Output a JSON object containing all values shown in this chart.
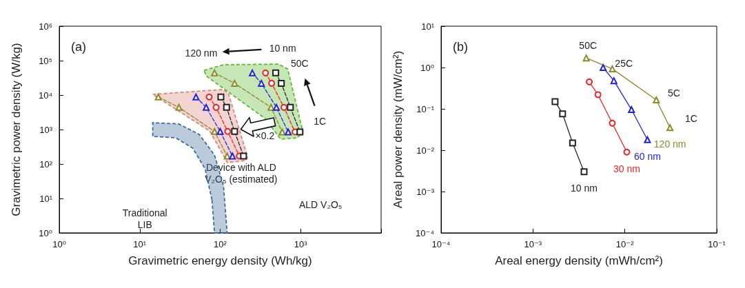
{
  "chart_data": [
    {
      "type": "line",
      "xlabel": "Gravimetric energy density (Wh/kg)",
      "ylabel": "Gravimetric power density (W/kg)",
      "log": "xy",
      "xlim": [
        1,
        10000
      ],
      "ylim": [
        1,
        1000000
      ],
      "xticks": [
        {
          "value": 1,
          "label": "10⁰"
        },
        {
          "value": 10,
          "label": "10¹"
        },
        {
          "value": 100,
          "label": "10²"
        },
        {
          "value": 1000,
          "label": "10³"
        },
        {
          "value": 10000,
          "label": null
        }
      ],
      "yticks": [
        {
          "value": 1,
          "label": "10⁰"
        },
        {
          "value": 10,
          "label": "10¹"
        },
        {
          "value": 100,
          "label": "10²"
        },
        {
          "value": 1000,
          "label": "10³"
        },
        {
          "value": 10000,
          "label": "10⁴"
        },
        {
          "value": 100000,
          "label": "10⁵"
        },
        {
          "value": 1000000,
          "label": "10⁶"
        }
      ],
      "grid": false,
      "legend": false,
      "line_style": "dashed",
      "annotations": [
        "(a)",
        "120 nm",
        "10 nm",
        "50C",
        {
          "text": "1C",
          "x": 980,
          "y": 850
        },
        {
          "text": "×0.2",
          "x": 151,
          "y": 880
        },
        "ALD V₂O₅",
        "Device with ALD V₂O₅ (estimated)",
        "Traditional LIB"
      ],
      "series": [
        {
          "type": "area",
          "color": "#5cb82e",
          "x": [
            63,
            110,
            534,
            690,
            1070,
            910,
            565,
            360,
            67
          ],
          "values": [
            52000,
            76000,
            79000,
            57000,
            830,
            575,
            525,
            2100,
            36000
          ]
        },
        {
          "type": "area",
          "color": "#d9837a",
          "x": [
            14.5,
            107,
            126,
            219,
            208,
            123,
            74
          ],
          "values": [
            10500,
            14500,
            11500,
            158,
            126,
            110,
            910
          ]
        },
        {
          "type": "area",
          "color": "#3d6a99",
          "x": [
            79,
            65,
            45.6,
            28,
            14.5,
            14.5,
            30.6,
            55,
            85,
            110,
            122,
            85
          ],
          "values": [
            9.1,
            72,
            288,
            575,
            630,
            1580,
            1450,
            720,
            182,
            23,
            1,
            1
          ]
        },
        {
          "color": "#8a8a2a",
          "marker": "triangle",
          "x": [
            85,
            151,
            428,
            590
          ],
          "values": [
            44000,
            22000,
            4400,
            850
          ]
        },
        {
          "color": "#2222dd",
          "marker": "triangle",
          "x": [
            251,
            325,
            500,
            700
          ],
          "values": [
            44000,
            22000,
            4400,
            850
          ]
        },
        {
          "color": "#ee2222",
          "marker": "circle",
          "x": [
            366,
            436,
            620,
            850
          ],
          "values": [
            44000,
            22000,
            4400,
            850
          ]
        },
        {
          "color": "#222222",
          "marker": "square",
          "x": [
            490,
            575,
            745,
            980
          ],
          "values": [
            44000,
            22000,
            4400,
            850
          ]
        },
        {
          "color": "#8a8a2a",
          "marker": "triangle",
          "x": [
            17,
            30.7,
            85,
            122
          ],
          "values": [
            8800,
            4400,
            880,
            170
          ]
        },
        {
          "color": "#2222dd",
          "marker": "triangle",
          "x": [
            50,
            67,
            100,
            142
          ],
          "values": [
            8800,
            4400,
            880,
            170
          ]
        },
        {
          "color": "#ee2222",
          "marker": "circle",
          "x": [
            73,
            89,
            124,
            173
          ],
          "values": [
            8800,
            4400,
            880,
            170
          ]
        },
        {
          "color": "#222222",
          "marker": "square",
          "x": [
            102,
            120,
            151,
            195
          ],
          "values": [
            8800,
            4400,
            880,
            170
          ]
        }
      ]
    },
    {
      "type": "line",
      "xlabel": "Areal energy density (mWh/cm²)",
      "ylabel": "Areal power density (mW/cm²)",
      "log": "xy",
      "xlim": [
        0.0001,
        0.1
      ],
      "ylim": [
        0.0001,
        10
      ],
      "xticks": [
        {
          "value": 0.0001,
          "label": "10⁻⁴"
        },
        {
          "value": 0.001,
          "label": "10⁻³"
        },
        {
          "value": 0.01,
          "label": "10⁻²"
        },
        {
          "value": 0.1,
          "label": "10⁻¹"
        }
      ],
      "yticks": [
        {
          "value": 0.0001,
          "label": "10⁻⁴"
        },
        {
          "value": 0.001,
          "label": "10⁻³"
        },
        {
          "value": 0.01,
          "label": "10⁻²"
        },
        {
          "value": 0.1,
          "label": "10⁻¹"
        },
        {
          "value": 1,
          "label": "10⁰"
        },
        {
          "value": 10,
          "label": "10¹"
        }
      ],
      "grid": false,
      "legend": false,
      "line_style": "solid",
      "annotations": [
        "(b)",
        "50C",
        "25C",
        "5C",
        "1C"
      ],
      "series": [
        {
          "name": "10 nm",
          "color": "#222222",
          "marker": "square",
          "x": [
            0.00174,
            0.0021,
            0.0027,
            0.0036
          ],
          "values": [
            0.15,
            0.076,
            0.015,
            0.003
          ]
        },
        {
          "name": "30 nm",
          "color": "#ee2222",
          "marker": "circle",
          "x": [
            0.0041,
            0.0051,
            0.0073,
            0.0105
          ],
          "values": [
            0.45,
            0.22,
            0.045,
            0.009
          ]
        },
        {
          "name": "60 nm",
          "color": "#2222dd",
          "marker": "triangle",
          "x": [
            0.0058,
            0.0076,
            0.0118,
            0.0176
          ],
          "values": [
            1.0,
            0.48,
            0.096,
            0.018
          ]
        },
        {
          "name": "120 nm",
          "color": "#8a8a2a",
          "marker": "triangle",
          "x": [
            0.0038,
            0.0073,
            0.022,
            0.031
          ],
          "values": [
            1.7,
            0.93,
            0.165,
            0.035
          ]
        }
      ]
    }
  ]
}
